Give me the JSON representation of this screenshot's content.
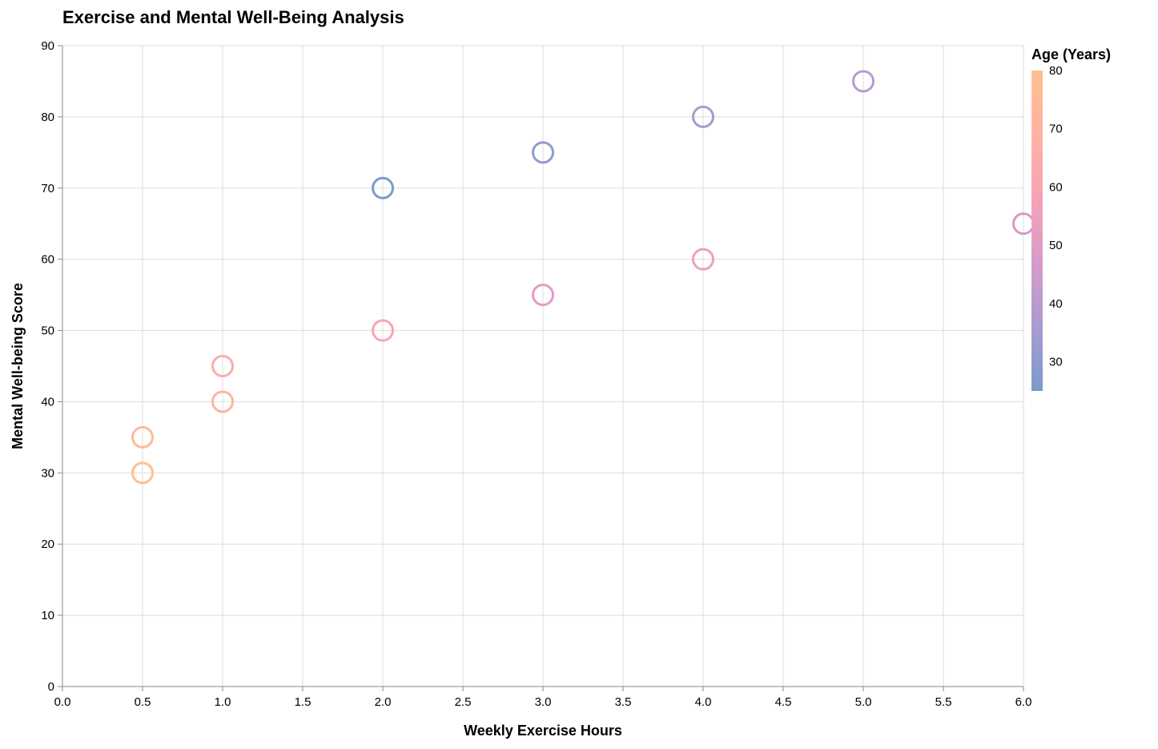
{
  "chart_data": {
    "type": "scatter",
    "title": "Exercise and Mental Well-Being Analysis",
    "xlabel": "Weekly Exercise Hours",
    "ylabel": "Mental Well-being Score",
    "xlim": [
      0,
      6
    ],
    "ylim": [
      0,
      90
    ],
    "x_ticks": [
      "0.0",
      "0.5",
      "1.0",
      "1.5",
      "2.0",
      "2.5",
      "3.0",
      "3.5",
      "4.0",
      "4.5",
      "5.0",
      "5.5",
      "6.0"
    ],
    "x_tick_values": [
      0,
      0.5,
      1,
      1.5,
      2,
      2.5,
      3,
      3.5,
      4,
      4.5,
      5,
      5.5,
      6
    ],
    "y_ticks": [
      "0",
      "10",
      "20",
      "30",
      "40",
      "50",
      "60",
      "70",
      "80",
      "90"
    ],
    "y_tick_values": [
      0,
      10,
      20,
      30,
      40,
      50,
      60,
      70,
      80,
      90
    ],
    "grid": true,
    "legend": {
      "title": "Age (Years)",
      "placement": "right",
      "range": [
        25,
        80
      ],
      "tick_labels": [
        "30",
        "40",
        "50",
        "60",
        "70",
        "80"
      ],
      "tick_values": [
        30,
        40,
        50,
        60,
        70,
        80
      ],
      "colors": [
        "#7b9bcb",
        "#a99bd0",
        "#d79bcb",
        "#f7a3b5",
        "#ffb2a5",
        "#ffc08e"
      ]
    },
    "points": [
      {
        "x": 2,
        "y": 70,
        "age": 25
      },
      {
        "x": 3,
        "y": 75,
        "age": 30
      },
      {
        "x": 4,
        "y": 80,
        "age": 35
      },
      {
        "x": 5,
        "y": 85,
        "age": 40
      },
      {
        "x": 6,
        "y": 65,
        "age": 45
      },
      {
        "x": 3,
        "y": 55,
        "age": 50
      },
      {
        "x": 4,
        "y": 60,
        "age": 55
      },
      {
        "x": 2,
        "y": 50,
        "age": 60
      },
      {
        "x": 1,
        "y": 45,
        "age": 65
      },
      {
        "x": 1,
        "y": 40,
        "age": 70
      },
      {
        "x": 0.5,
        "y": 35,
        "age": 75
      },
      {
        "x": 0.5,
        "y": 30,
        "age": 80
      }
    ]
  }
}
